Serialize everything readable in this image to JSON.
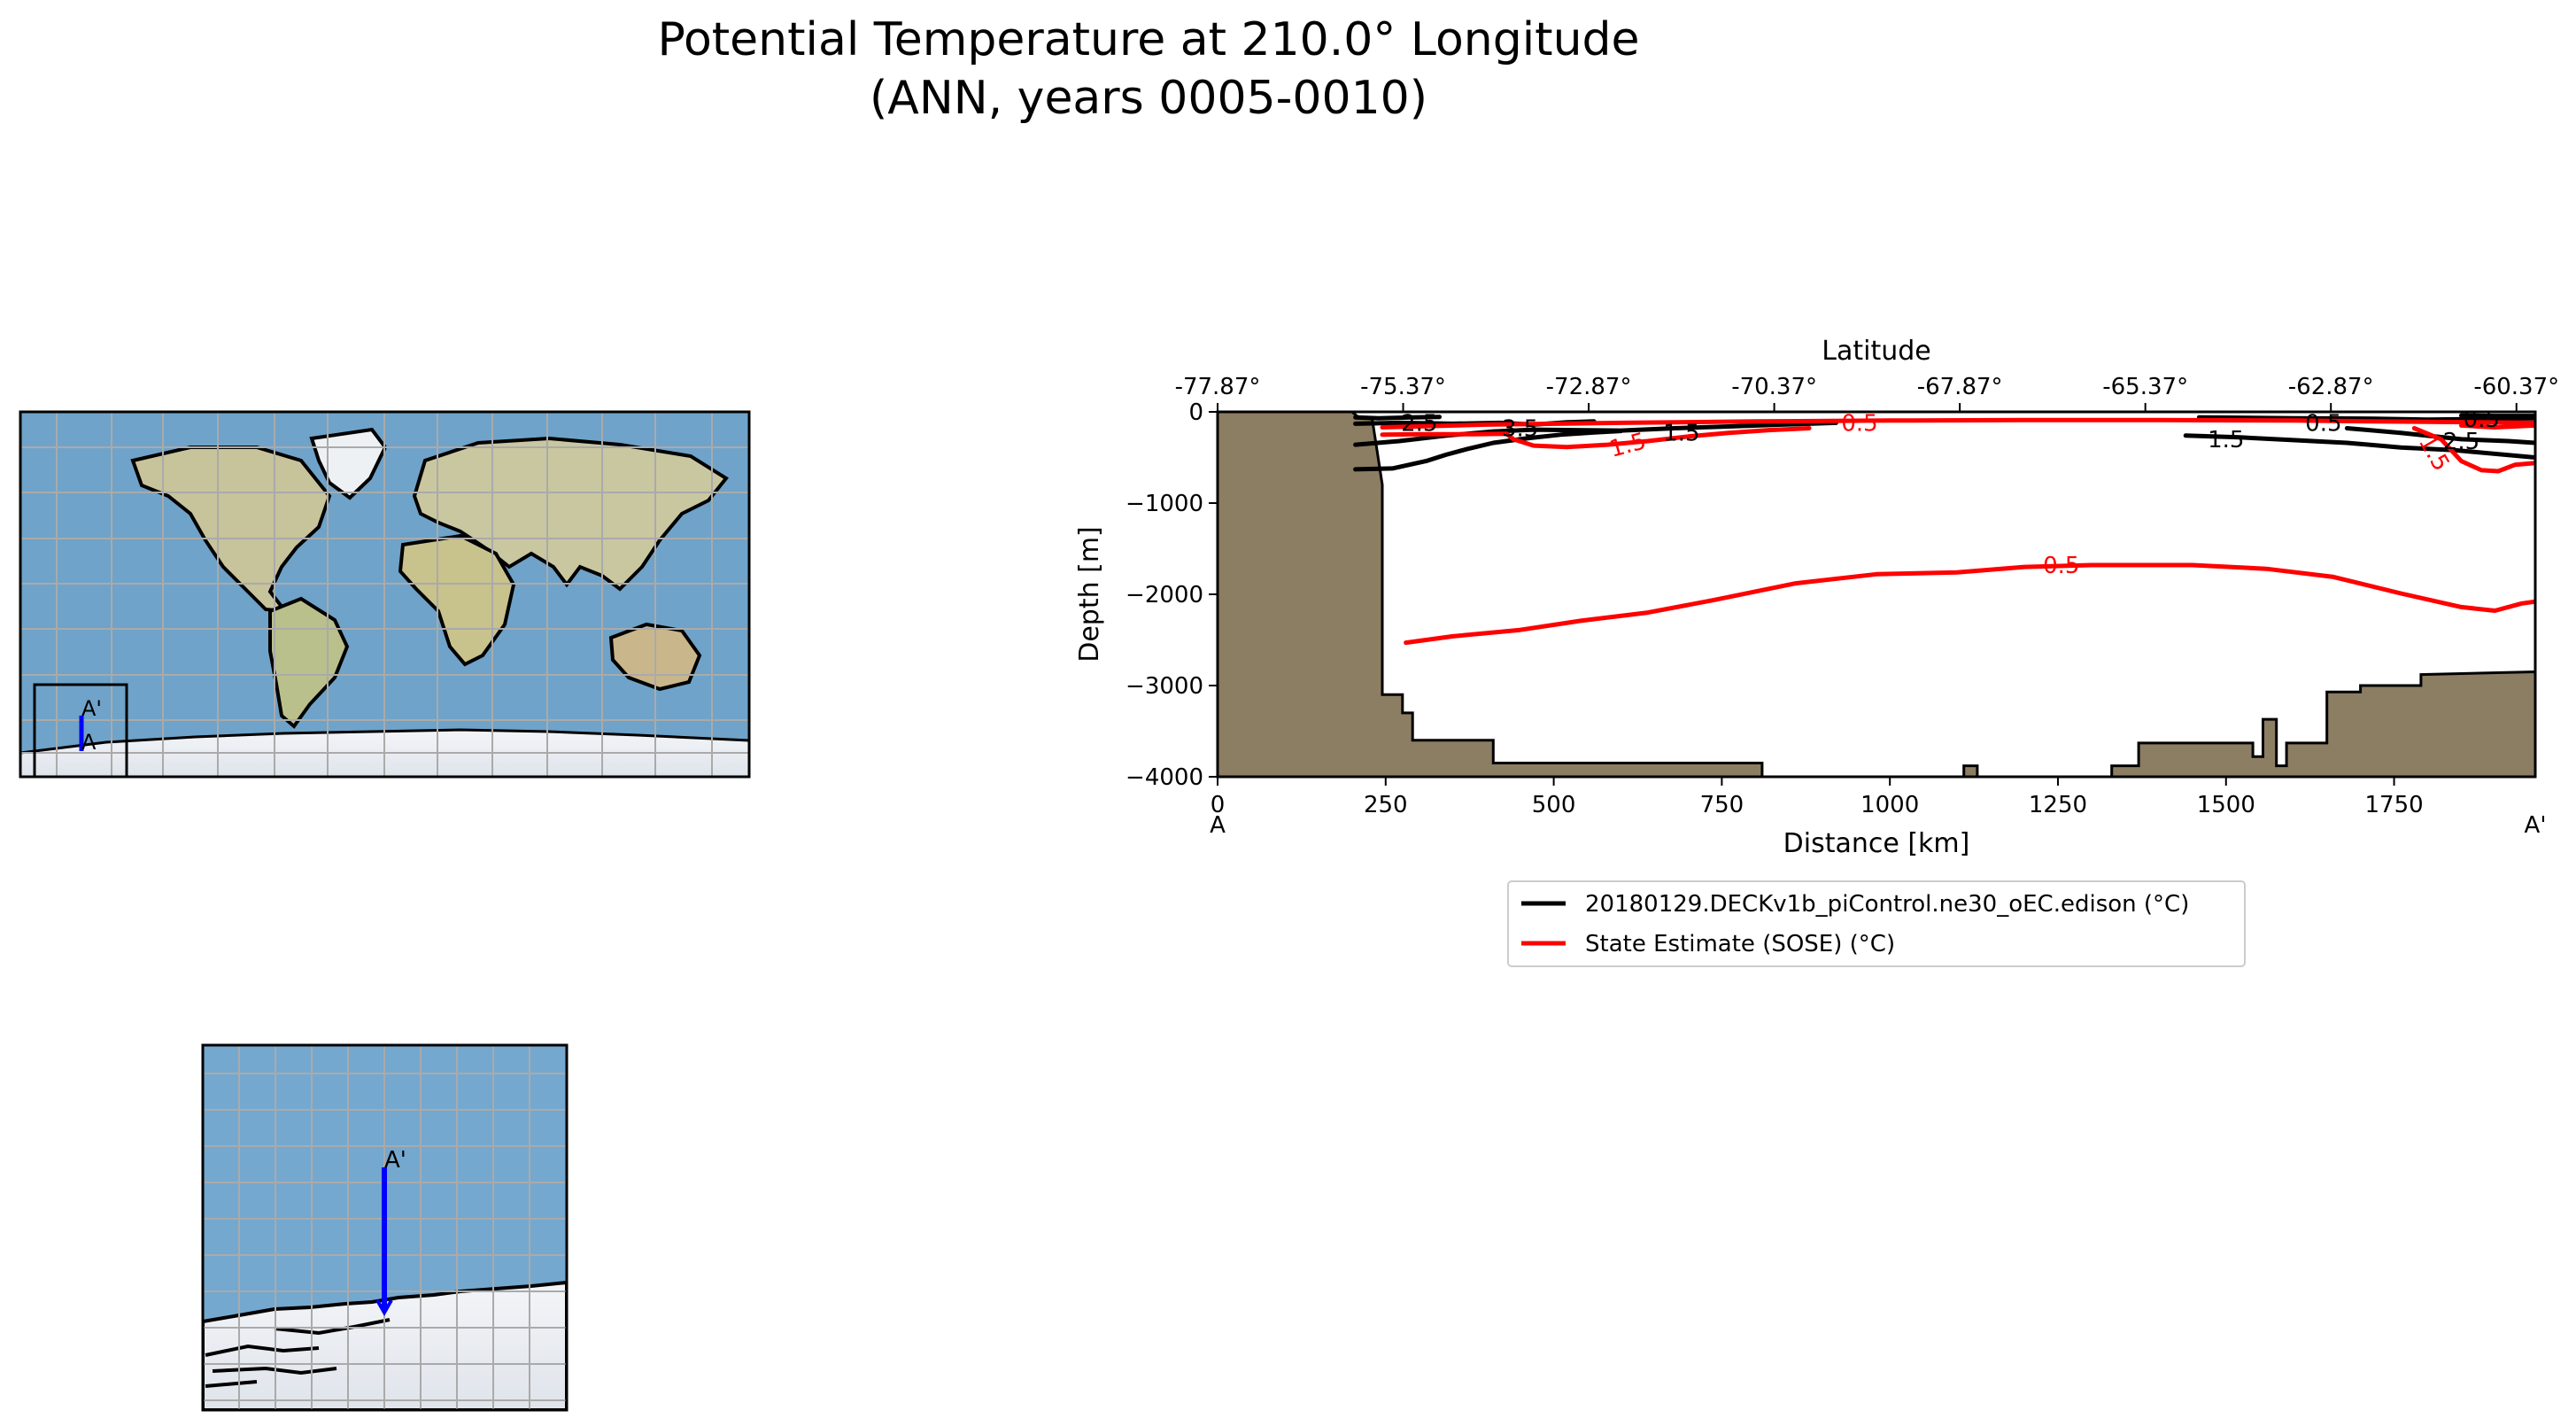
{
  "title_line1": "Potential Temperature at 210.0° Longitude",
  "title_line2": "(ANN, years 0005-0010)",
  "colors": {
    "land": "#8c7e63",
    "model": "#000000",
    "obs": "#ff0000",
    "transect": "#0000ff",
    "ocean": "#6fa3c9",
    "ice": "#e6eaf0",
    "grid": "#aaaaaa"
  },
  "inset": {
    "start_label": "A",
    "end_label": "A'"
  },
  "chart_data": {
    "type": "line",
    "subtype": "contour-section",
    "xlabel": "Distance [km]",
    "ylabel": "Depth [m]",
    "top_axis_label": "Latitude",
    "xlim": [
      0,
      1960
    ],
    "ylim": [
      -4000,
      0
    ],
    "x_ticks": [
      0,
      250,
      500,
      750,
      1000,
      1250,
      1500,
      1750
    ],
    "x_tick_labels": [
      "0",
      "250",
      "500",
      "750",
      "1000",
      "1250",
      "1500",
      "1750"
    ],
    "y_ticks": [
      0,
      -1000,
      -2000,
      -3000,
      -4000
    ],
    "y_tick_labels": [
      "0",
      "−1000",
      "−2000",
      "−3000",
      "−4000"
    ],
    "top_ticks": [
      0,
      276,
      552,
      828,
      1104,
      1380,
      1656,
      1932
    ],
    "top_tick_labels": [
      "-77.87°",
      "-75.37°",
      "-72.87°",
      "-70.37°",
      "-67.87°",
      "-65.37°",
      "-62.87°",
      "-60.37°"
    ],
    "start_label": "A",
    "end_label": "A'",
    "grid": false,
    "legend_position": "below",
    "legend": [
      {
        "name": "20180129.DECKv1b_piControl.ne30_oEC.edison (°C)",
        "color": "#000000"
      },
      {
        "name": "State Estimate (SOSE) (°C)",
        "color": "#ff0000"
      }
    ],
    "bathymetry": [
      [
        0,
        0
      ],
      [
        200,
        0
      ],
      [
        208,
        -50
      ],
      [
        230,
        -80
      ],
      [
        245,
        -800
      ],
      [
        245,
        -3100
      ],
      [
        275,
        -3100
      ],
      [
        275,
        -3300
      ],
      [
        290,
        -3300
      ],
      [
        290,
        -3600
      ],
      [
        410,
        -3600
      ],
      [
        410,
        -3850
      ],
      [
        810,
        -3850
      ],
      [
        810,
        -4000
      ],
      [
        1110,
        -4000
      ],
      [
        1110,
        -3880
      ],
      [
        1130,
        -3880
      ],
      [
        1130,
        -4000
      ],
      [
        1330,
        -4000
      ],
      [
        1330,
        -3880
      ],
      [
        1370,
        -3880
      ],
      [
        1370,
        -3630
      ],
      [
        1540,
        -3630
      ],
      [
        1540,
        -3780
      ],
      [
        1555,
        -3780
      ],
      [
        1555,
        -3370
      ],
      [
        1575,
        -3370
      ],
      [
        1575,
        -3880
      ],
      [
        1590,
        -3880
      ],
      [
        1590,
        -3630
      ],
      [
        1650,
        -3630
      ],
      [
        1650,
        -3070
      ],
      [
        1700,
        -3070
      ],
      [
        1700,
        -3000
      ],
      [
        1790,
        -3000
      ],
      [
        1790,
        -2880
      ],
      [
        1960,
        -2850
      ],
      [
        1960,
        -4000
      ],
      [
        0,
        -4000
      ]
    ],
    "series": [
      {
        "name": "20180129.DECKv1b_piControl.ne30_oEC.edison (°C)",
        "contours": [
          {
            "level": "0.5",
            "points": [
              [
                1460,
                -60
              ],
              [
                1600,
                -70
              ],
              [
                1720,
                -75
              ],
              [
                1800,
                -85
              ],
              [
                1860,
                -80
              ],
              [
                1960,
                -70
              ]
            ]
          },
          {
            "level": "0.5",
            "points": [
              [
                1850,
                -40
              ],
              [
                1900,
                -45
              ],
              [
                1960,
                -45
              ]
            ]
          },
          {
            "level": "2.5",
            "points": [
              [
                205,
                -60
              ],
              [
                240,
                -70
              ],
              [
                290,
                -60
              ],
              [
                330,
                -55
              ]
            ]
          },
          {
            "level": "2.5",
            "points": [
              [
                1680,
                -180
              ],
              [
                1760,
                -230
              ],
              [
                1850,
                -300
              ],
              [
                1920,
                -320
              ],
              [
                1960,
                -340
              ]
            ]
          },
          {
            "level": "3.5",
            "points": [
              [
                205,
                -130
              ],
              [
                270,
                -120
              ],
              [
                350,
                -130
              ],
              [
                420,
                -120
              ],
              [
                470,
                -140
              ],
              [
                520,
                -115
              ],
              [
                560,
                -105
              ]
            ]
          },
          {
            "level": "1.5",
            "points": [
              [
                205,
                -360
              ],
              [
                270,
                -320
              ],
              [
                340,
                -260
              ],
              [
                410,
                -215
              ],
              [
                470,
                -195
              ],
              [
                530,
                -200
              ],
              [
                600,
                -205
              ],
              [
                680,
                -180
              ],
              [
                760,
                -160
              ],
              [
                840,
                -140
              ],
              [
                920,
                -120
              ]
            ]
          },
          {
            "level": "1.5",
            "points": [
              [
                1440,
                -260
              ],
              [
                1520,
                -280
              ],
              [
                1600,
                -310
              ],
              [
                1680,
                -340
              ],
              [
                1760,
                -390
              ],
              [
                1840,
                -420
              ],
              [
                1960,
                -500
              ]
            ]
          },
          {
            "level": "",
            "points": [
              [
                205,
                -630
              ],
              [
                260,
                -620
              ],
              [
                310,
                -540
              ],
              [
                340,
                -470
              ],
              [
                370,
                -410
              ],
              [
                410,
                -340
              ],
              [
                460,
                -290
              ],
              [
                510,
                -250
              ],
              [
                560,
                -225
              ],
              [
                600,
                -210
              ]
            ]
          }
        ]
      },
      {
        "name": "State Estimate (SOSE) (°C)",
        "contours": [
          {
            "level": "0.5",
            "points": [
              [
                245,
                -170
              ],
              [
                400,
                -140
              ],
              [
                600,
                -120
              ],
              [
                800,
                -105
              ],
              [
                1000,
                -95
              ],
              [
                1200,
                -90
              ],
              [
                1400,
                -90
              ],
              [
                1600,
                -95
              ],
              [
                1800,
                -110
              ],
              [
                1960,
                -120
              ]
            ]
          },
          {
            "level": "1.5",
            "points": [
              [
                245,
                -250
              ],
              [
                300,
                -245
              ],
              [
                380,
                -245
              ],
              [
                430,
                -240
              ],
              [
                440,
                -300
              ],
              [
                470,
                -370
              ],
              [
                520,
                -385
              ],
              [
                580,
                -360
              ],
              [
                640,
                -320
              ],
              [
                700,
                -270
              ],
              [
                760,
                -230
              ],
              [
                820,
                -200
              ],
              [
                880,
                -180
              ]
            ]
          },
          {
            "level": "1.5",
            "points": [
              [
                1780,
                -180
              ],
              [
                1820,
                -300
              ],
              [
                1850,
                -540
              ],
              [
                1880,
                -640
              ],
              [
                1905,
                -650
              ],
              [
                1930,
                -580
              ],
              [
                1960,
                -560
              ]
            ]
          },
          {
            "level": "0.5",
            "points": [
              [
                1850,
                -150
              ],
              [
                1900,
                -170
              ],
              [
                1960,
                -150
              ]
            ]
          },
          {
            "level": "0.5",
            "points": [
              [
                280,
                -2530
              ],
              [
                350,
                -2460
              ],
              [
                450,
                -2390
              ],
              [
                540,
                -2290
              ],
              [
                640,
                -2200
              ],
              [
                740,
                -2060
              ],
              [
                860,
                -1880
              ],
              [
                980,
                -1780
              ],
              [
                1100,
                -1760
              ],
              [
                1200,
                -1700
              ],
              [
                1300,
                -1680
              ],
              [
                1450,
                -1680
              ],
              [
                1560,
                -1720
              ],
              [
                1660,
                -1810
              ],
              [
                1760,
                -1990
              ],
              [
                1850,
                -2140
              ],
              [
                1900,
                -2180
              ],
              [
                1940,
                -2100
              ],
              [
                1960,
                -2080
              ]
            ]
          }
        ]
      }
    ],
    "label_positions": [
      {
        "level": "0.5",
        "x": 1255,
        "y": -1680,
        "color": "#ff0000"
      },
      {
        "level": "1.5",
        "x": 610,
        "y": -360,
        "color": "#ff0000",
        "rotate": -15
      },
      {
        "level": "1.5",
        "x": 1810,
        "y": -450,
        "color": "#ff0000",
        "rotate": 60
      },
      {
        "level": "0.5",
        "x": 955,
        "y": -120,
        "color": "#ff0000"
      },
      {
        "level": "1.5",
        "x": 690,
        "y": -230,
        "color": "#000000"
      },
      {
        "level": "3.5",
        "x": 450,
        "y": -180,
        "color": "#000000"
      },
      {
        "level": "2.5",
        "x": 300,
        "y": -120,
        "color": "#000000"
      },
      {
        "level": "1.5",
        "x": 1500,
        "y": -300,
        "color": "#000000"
      },
      {
        "level": "0.5",
        "x": 1645,
        "y": -120,
        "color": "#000000"
      },
      {
        "level": "2.5",
        "x": 1850,
        "y": -320,
        "color": "#000000"
      },
      {
        "level": "0.5",
        "x": 1880,
        "y": -80,
        "color": "#000000"
      }
    ]
  }
}
